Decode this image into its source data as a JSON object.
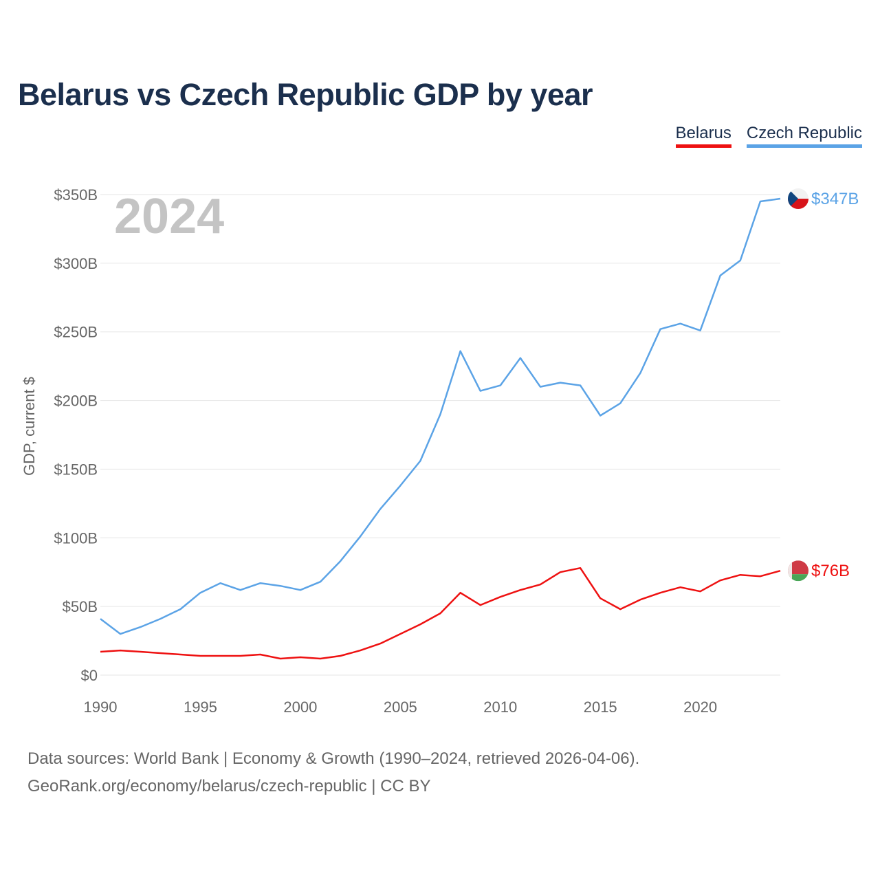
{
  "chart_data": {
    "type": "line",
    "title": "Belarus vs Czech Republic GDP by year",
    "ylabel": "GDP, current $",
    "xlabel": "",
    "year_label": "2024",
    "ylim": [
      0,
      350000000000
    ],
    "xlim": [
      1990,
      2024
    ],
    "y_ticks": [
      {
        "value": 0,
        "label": "$0"
      },
      {
        "value": 50000000000,
        "label": "$50B"
      },
      {
        "value": 100000000000,
        "label": "$100B"
      },
      {
        "value": 150000000000,
        "label": "$150B"
      },
      {
        "value": 200000000000,
        "label": "$200B"
      },
      {
        "value": 250000000000,
        "label": "$250B"
      },
      {
        "value": 300000000000,
        "label": "$300B"
      },
      {
        "value": 350000000000,
        "label": "$350B"
      }
    ],
    "x_ticks": [
      {
        "value": 1990,
        "label": "1990"
      },
      {
        "value": 1995,
        "label": "1995"
      },
      {
        "value": 2000,
        "label": "2000"
      },
      {
        "value": 2005,
        "label": "2005"
      },
      {
        "value": 2010,
        "label": "2010"
      },
      {
        "value": 2015,
        "label": "2015"
      },
      {
        "value": 2020,
        "label": "2020"
      }
    ],
    "x": [
      1990,
      1991,
      1992,
      1993,
      1994,
      1995,
      1996,
      1997,
      1998,
      1999,
      2000,
      2001,
      2002,
      2003,
      2004,
      2005,
      2006,
      2007,
      2008,
      2009,
      2010,
      2011,
      2012,
      2013,
      2014,
      2015,
      2016,
      2017,
      2018,
      2019,
      2020,
      2021,
      2022,
      2023,
      2024
    ],
    "series": [
      {
        "name": "Czech Republic",
        "color": "#5ba3e6",
        "end_label": "$347B",
        "flag": "czech-flag-icon",
        "values": [
          41,
          30,
          35,
          41,
          48,
          60,
          67,
          62,
          67,
          65,
          62,
          68,
          83,
          101,
          121,
          138,
          156,
          190,
          236,
          207,
          211,
          231,
          210,
          213,
          211,
          189,
          198,
          220,
          252,
          256,
          251,
          291,
          302,
          345,
          347
        ]
      },
      {
        "name": "Belarus",
        "color": "#ee1111",
        "end_label": "$76B",
        "flag": "belarus-flag-icon",
        "values": [
          17,
          18,
          17,
          16,
          15,
          14,
          14,
          14,
          15,
          12,
          13,
          12,
          14,
          18,
          23,
          30,
          37,
          45,
          60,
          51,
          57,
          62,
          66,
          75,
          78,
          56,
          48,
          55,
          60,
          64,
          61,
          69,
          73,
          72,
          76
        ]
      }
    ]
  },
  "legend": {
    "belarus": {
      "label": "Belarus",
      "color": "#ee1111"
    },
    "czech": {
      "label": "Czech Republic",
      "color": "#5ba3e6"
    }
  },
  "source": {
    "line1": "Data sources: World Bank | Economy & Growth (1990–2024, retrieved 2026-04-06).",
    "line2": "GeoRank.org/economy/belarus/czech-republic | CC BY"
  }
}
